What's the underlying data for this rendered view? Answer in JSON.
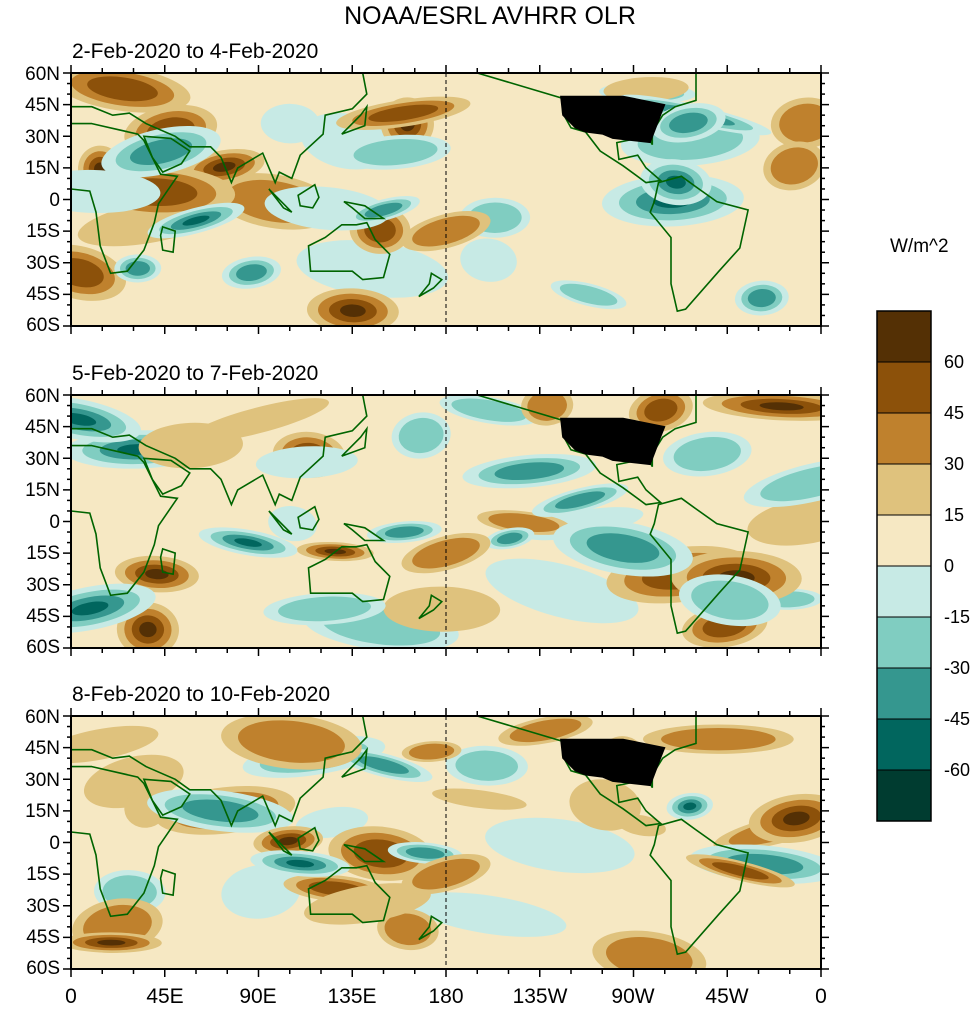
{
  "title": "NOAA/ESRL AVHRR OLR",
  "panels": [
    {
      "label": "2-Feb-2020 to 4-Feb-2020",
      "seed": 11
    },
    {
      "label": "5-Feb-2020 to 7-Feb-2020",
      "seed": 23
    },
    {
      "label": "8-Feb-2020 to 10-Feb-2020",
      "seed": 37
    }
  ],
  "lat_labels": [
    "60N",
    "45N",
    "30N",
    "15N",
    "0",
    "15S",
    "30S",
    "45S",
    "60S"
  ],
  "lon_labels": [
    "0",
    "45E",
    "90E",
    "135E",
    "180",
    "135W",
    "90W",
    "45W",
    "0"
  ],
  "colorbar": {
    "units": "W/m^2",
    "labels": [
      "60",
      "45",
      "30",
      "15",
      "0",
      "-15",
      "-30",
      "-45",
      "-60"
    ],
    "colors": [
      "#543005",
      "#8c510a",
      "#bf812d",
      "#dfc27d",
      "#f6e8c3",
      "#c7eae5",
      "#80cdc1",
      "#35978f",
      "#01665e",
      "#003c30"
    ]
  },
  "line_color": "#006400"
}
